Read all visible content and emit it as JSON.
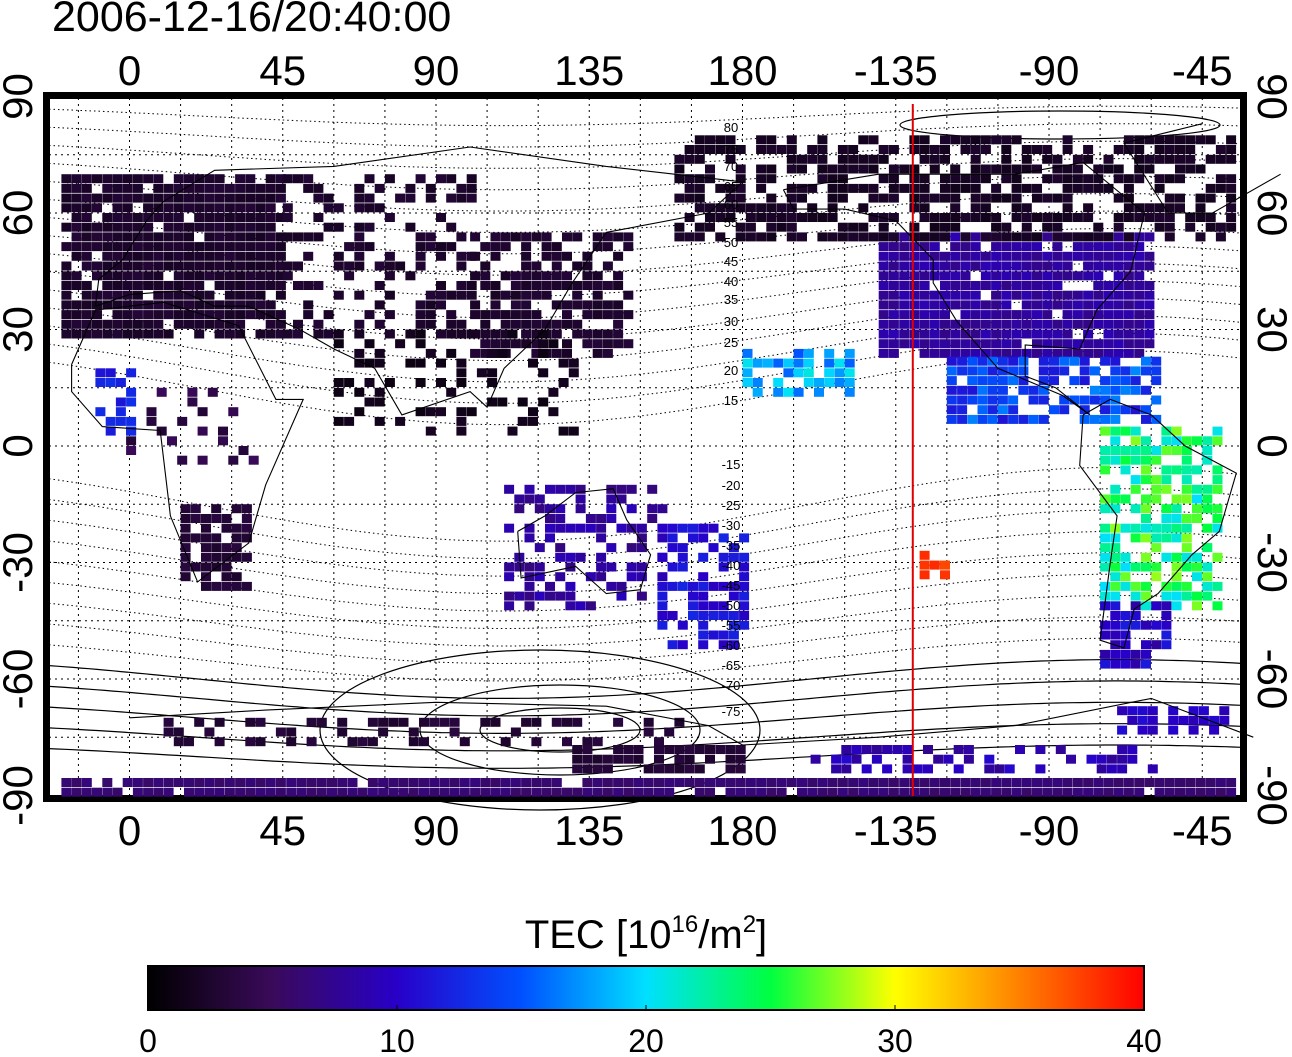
{
  "timestamp": "2006-12-16/20:40:00",
  "axes": {
    "lon_ticks": [
      "0",
      "45",
      "90",
      "135",
      "180",
      "-135",
      "-90",
      "-45"
    ],
    "lat_ticks": [
      "90",
      "60",
      "30",
      "0",
      "-30",
      "-60",
      "-90"
    ]
  },
  "map": {
    "terminator_longitude": -130,
    "magnetic_contour_labels": [
      "80",
      "75",
      "70",
      "65",
      "60",
      "55",
      "50",
      "45",
      "40",
      "35",
      "30",
      "25",
      "20",
      "15",
      "-15",
      "-20",
      "-25",
      "-30",
      "-35",
      "-40",
      "-45",
      "-50",
      "-55",
      "-60",
      "-65",
      "-70",
      "-75"
    ],
    "terminator_color": "#e00000"
  },
  "colorbar": {
    "title": "TEC",
    "unit_base": "[10",
    "unit_exp": "16",
    "unit_mid": "/m",
    "unit_exp2": "2",
    "unit_end": "]",
    "ticks": [
      "0",
      "10",
      "20",
      "30",
      "40"
    ],
    "range": [
      0,
      40
    ],
    "colormap": [
      "#000000",
      "#3a0a5a",
      "#2800c8",
      "#0050ff",
      "#00e0ff",
      "#00ff40",
      "#ffff00",
      "#ff8000",
      "#ff0000"
    ]
  }
}
